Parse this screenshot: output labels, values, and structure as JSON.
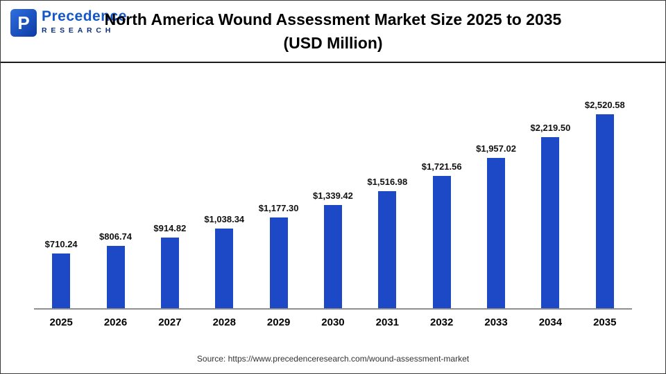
{
  "header": {
    "logo": {
      "icon_letter": "P",
      "line1": "Precedence",
      "line2": "RESEARCH"
    },
    "title_line1": "North America  Wound Assessment Market Size 2025 to 2035",
    "title_line2": "(USD Million)"
  },
  "chart_data": {
    "type": "bar",
    "title": "North America Wound Assessment Market Size 2025 to 2035 (USD Million)",
    "categories": [
      "2025",
      "2026",
      "2027",
      "2028",
      "2029",
      "2030",
      "2031",
      "2032",
      "2033",
      "2034",
      "2035"
    ],
    "values": [
      710.24,
      806.74,
      914.82,
      1038.34,
      1177.3,
      1339.42,
      1516.98,
      1721.56,
      1957.02,
      2219.5,
      2520.58
    ],
    "labels": [
      "$710.24",
      "$806.74",
      "$914.82",
      "$1,038.34",
      "$1,177.30",
      "$1,339.42",
      "$1,516.98",
      "$1,721.56",
      "$1,957.02",
      "$2,219.50",
      "$2,520.58"
    ],
    "bar_color": "#1d49c6",
    "xlabel": "",
    "ylabel": "",
    "ylim": [
      0,
      2700
    ],
    "grid": false,
    "legend": false,
    "legend_position": "none"
  },
  "footer": {
    "source": "Source: https://www.precedenceresearch.com/wound-assessment-market"
  }
}
